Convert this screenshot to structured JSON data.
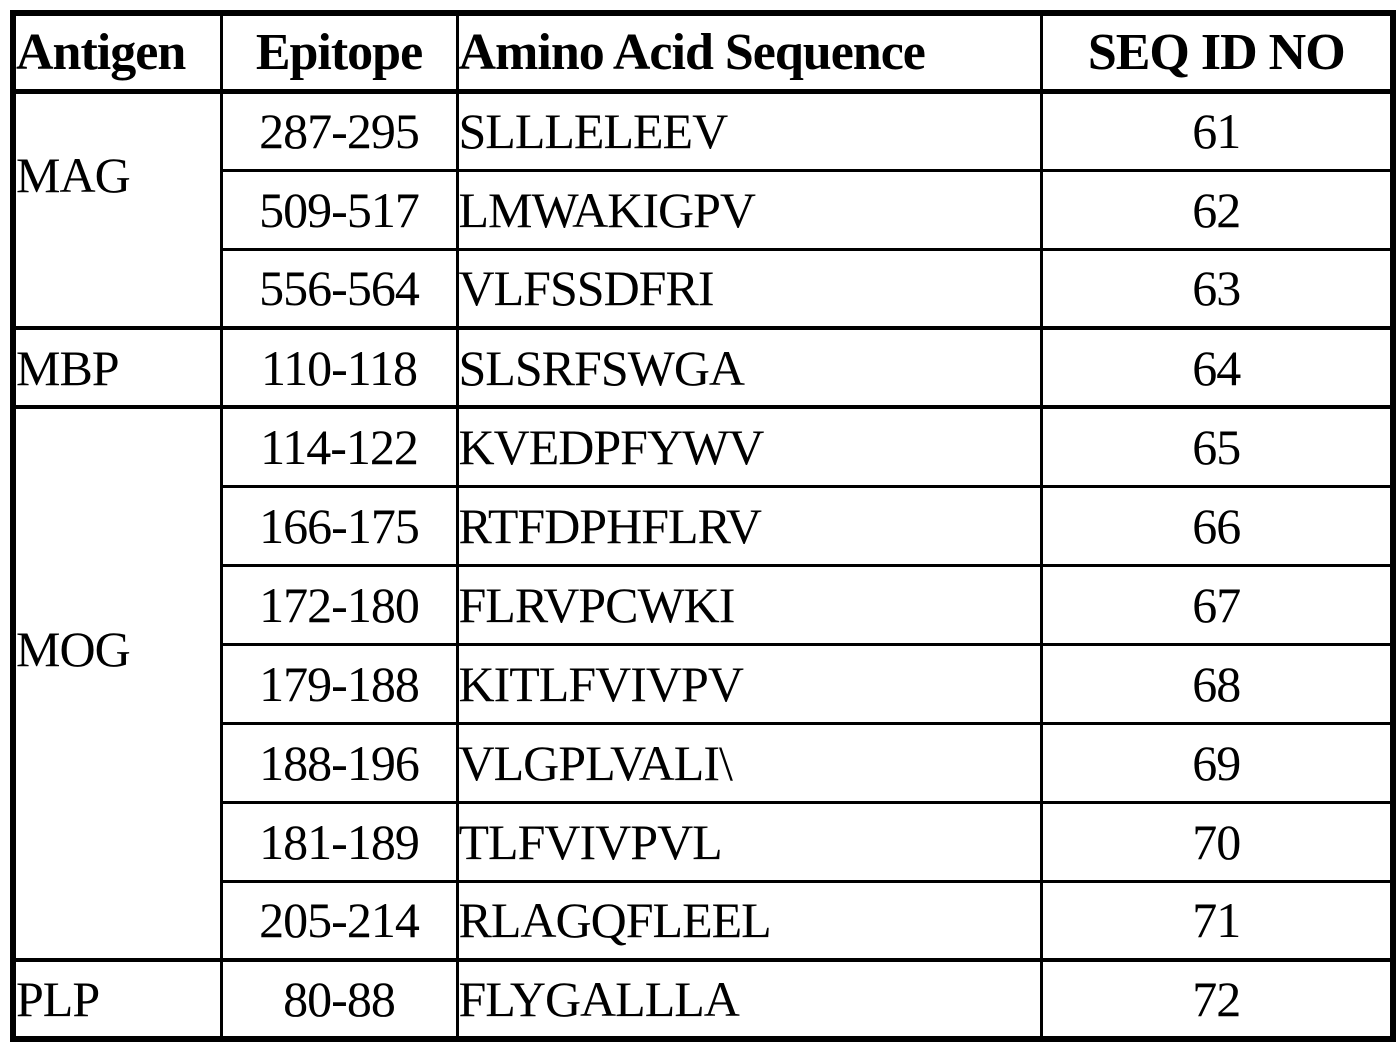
{
  "table": {
    "columns": [
      "Antigen",
      "Epitope",
      "Amino Acid Sequence",
      "SEQ ID NO"
    ],
    "groups": [
      {
        "antigen": "MAG",
        "rows": [
          {
            "epitope": "287-295",
            "sequence": "SLLLELEEV",
            "seq_id": "61"
          },
          {
            "epitope": "509-517",
            "sequence": "LMWAKIGPV",
            "seq_id": "62"
          },
          {
            "epitope": "556-564",
            "sequence": "VLFSSDFRI",
            "seq_id": "63"
          }
        ]
      },
      {
        "antigen": "MBP",
        "rows": [
          {
            "epitope": "110-118",
            "sequence": "SLSRFSWGA",
            "seq_id": "64"
          }
        ]
      },
      {
        "antigen": "MOG",
        "rows": [
          {
            "epitope": "114-122",
            "sequence": "KVEDPFYWV",
            "seq_id": "65"
          },
          {
            "epitope": "166-175",
            "sequence": "RTFDPHFLRV",
            "seq_id": "66"
          },
          {
            "epitope": "172-180",
            "sequence": "FLRVPCWKI",
            "seq_id": "67"
          },
          {
            "epitope": "179-188",
            "sequence": "KITLFVIVPV",
            "seq_id": "68"
          },
          {
            "epitope": "188-196",
            "sequence": "VLGPLVALI\\",
            "seq_id": "69"
          },
          {
            "epitope": "181-189",
            "sequence": "TLFVIVPVL",
            "seq_id": "70"
          },
          {
            "epitope": "205-214",
            "sequence": "RLAGQFLEEL",
            "seq_id": "71"
          }
        ]
      },
      {
        "antigen": "PLP",
        "rows": [
          {
            "epitope": "80-88",
            "sequence": "FLYGALLLA",
            "seq_id": "72"
          }
        ]
      }
    ]
  },
  "colors": {
    "border": "#000000",
    "background": "#ffffff",
    "text": "#000000"
  }
}
